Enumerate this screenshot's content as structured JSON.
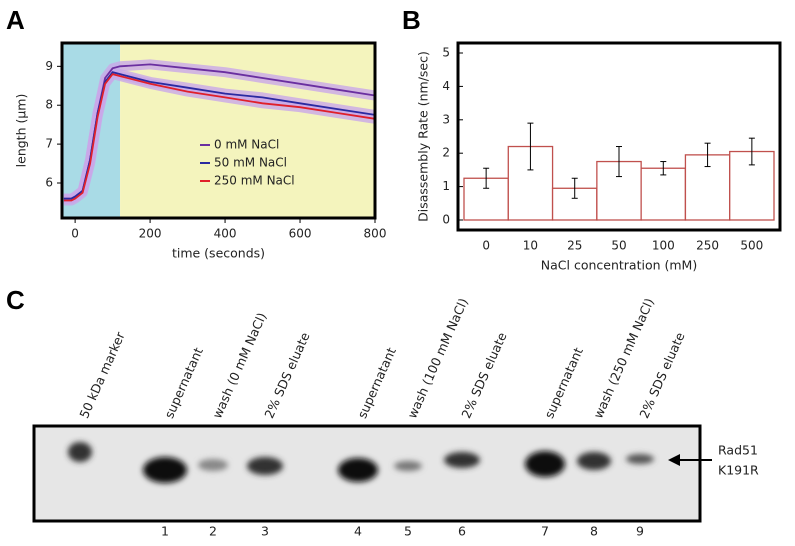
{
  "panel_labels": [
    "A",
    "B",
    "C"
  ],
  "chart_data": [
    {
      "type": "line",
      "xlabel": "time (seconds)",
      "ylabel": "length (µm)",
      "x": [
        -30,
        -10,
        0,
        20,
        40,
        60,
        80,
        100,
        120,
        200,
        300,
        400,
        500,
        600,
        700,
        800
      ],
      "series": [
        {
          "name": "0 mM NaCl",
          "color": "#6a2fa0",
          "values": [
            5.6,
            5.6,
            5.65,
            5.8,
            6.6,
            7.8,
            8.7,
            8.95,
            9.0,
            9.05,
            8.95,
            8.85,
            8.7,
            8.55,
            8.4,
            8.25
          ]
        },
        {
          "name": "50 mM NaCl",
          "color": "#2a2aa0",
          "values": [
            5.6,
            5.6,
            5.65,
            5.8,
            6.6,
            7.8,
            8.6,
            8.85,
            8.8,
            8.6,
            8.45,
            8.3,
            8.2,
            8.05,
            7.9,
            7.75
          ]
        },
        {
          "name": "250 mM NaCl",
          "color": "#e0202a",
          "values": [
            5.55,
            5.55,
            5.6,
            5.75,
            6.5,
            7.7,
            8.55,
            8.8,
            8.75,
            8.55,
            8.35,
            8.2,
            8.05,
            7.95,
            7.8,
            7.65
          ]
        }
      ],
      "band_color": "#c9a8e8",
      "regions": [
        {
          "xlim": [
            -35,
            120
          ],
          "color": "#a9dbe6"
        },
        {
          "xlim": [
            120,
            800
          ],
          "color": "#f4f4bd"
        }
      ],
      "xlim": [
        -35,
        800
      ],
      "xticks": [
        0,
        200,
        400,
        600,
        800
      ],
      "ylim": [
        5.1,
        9.6
      ],
      "yticks": [
        6,
        7,
        8,
        9
      ]
    },
    {
      "type": "bar",
      "xlabel": "NaCl concentration (mM)",
      "ylabel": "Disassembly Rate (nm/sec)",
      "categories": [
        "0",
        "10",
        "25",
        "50",
        "100",
        "250",
        "500"
      ],
      "values": [
        1.25,
        2.2,
        0.95,
        1.75,
        1.55,
        1.95,
        2.05
      ],
      "errors": [
        0.3,
        0.7,
        0.3,
        0.45,
        0.2,
        0.35,
        0.4
      ],
      "color": "#ffffff",
      "edge_color": "#c0504d",
      "ylim": [
        0,
        5
      ],
      "yticks": [
        0,
        1,
        2,
        3,
        4,
        5
      ]
    }
  ],
  "gel": {
    "lane_labels": [
      "50 kDa marker",
      "supernatant",
      "wash (0 mM NaCl)",
      "2% SDS eluate",
      "supernatant",
      "wash (100 mM NaCl)",
      "2% SDS eluate",
      "supernatant",
      "wash (250 mM NaCl)",
      "2% SDS eluate"
    ],
    "lane_numbers": [
      "1",
      "2",
      "3",
      "4",
      "5",
      "6",
      "7",
      "8",
      "9"
    ],
    "band_label": [
      "Rad51",
      "K191R"
    ]
  }
}
